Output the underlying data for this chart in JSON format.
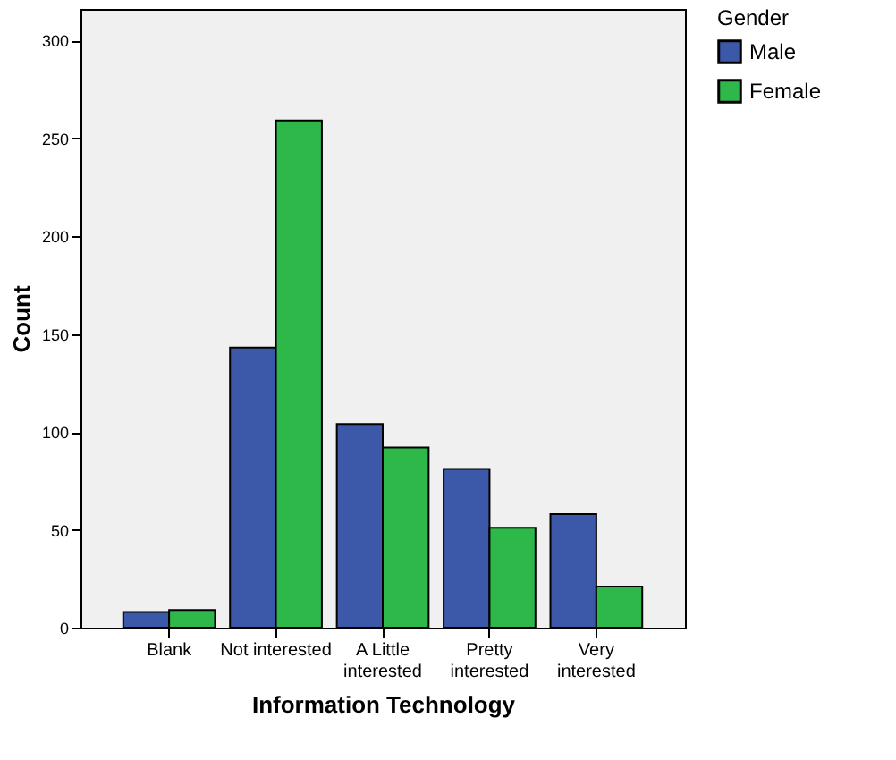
{
  "chart_data": {
    "type": "bar",
    "xlabel": "Information Technology",
    "ylabel": "Count",
    "legend_title": "Gender",
    "categories": [
      "Blank",
      "Not interested",
      "A Little interested",
      "Pretty interested",
      "Very interested"
    ],
    "series": [
      {
        "name": "Male",
        "color": "#3c58a8",
        "values": [
          8,
          143,
          104,
          81,
          58
        ]
      },
      {
        "name": "Female",
        "color": "#2eb84a",
        "values": [
          9,
          259,
          92,
          51,
          21
        ]
      }
    ],
    "ylim": [
      0,
      316
    ],
    "yticks": [
      0,
      50,
      100,
      150,
      200,
      250,
      300
    ],
    "grid": false,
    "legend": "top right"
  }
}
